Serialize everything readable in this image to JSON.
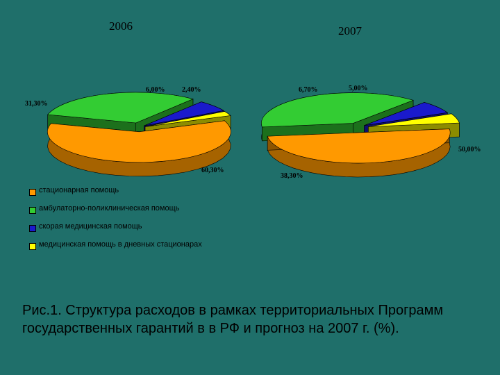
{
  "chart_data": [
    {
      "type": "pie",
      "title": "2006",
      "categories": [
        "стационарная помощь",
        "амбулаторно-поликлиническая помощь",
        "скорая медицинская помощь",
        "медицинская помощь в дневных стационарах"
      ],
      "values": [
        60.3,
        31.3,
        6.0,
        2.4
      ],
      "labels": [
        "60,30%",
        "31,30%",
        "6,00%",
        "2,40%"
      ],
      "colors": [
        "#ff9900",
        "#33cc33",
        "#1a1acc",
        "#ffff00"
      ]
    },
    {
      "type": "pie",
      "title": "2007",
      "categories": [
        "стационарная помощь",
        "амбулаторно-поликлиническая помощь",
        "скорая медицинская помощь",
        "медицинская помощь в дневных стационарах"
      ],
      "values": [
        50.0,
        38.3,
        6.7,
        5.0
      ],
      "labels": [
        "50,00%",
        "38,30%",
        "6,70%",
        "5,00%"
      ],
      "colors": [
        "#ff9900",
        "#33cc33",
        "#1a1acc",
        "#ffff00"
      ]
    }
  ],
  "legend": [
    {
      "label": "стационарная помощь",
      "color": "#ff9900"
    },
    {
      "label": "амбулаторно-поликлиническая помощь",
      "color": "#33cc33"
    },
    {
      "label": "скорая медицинская помощь",
      "color": "#1a1acc"
    },
    {
      "label": "медицинская помощь в дневных стационарах",
      "color": "#ffff00"
    }
  ],
  "caption": "Рис.1. Структура расходов в рамках территориальных Программ государственных гарантий в в РФ и прогноз на 2007 г. (%)."
}
